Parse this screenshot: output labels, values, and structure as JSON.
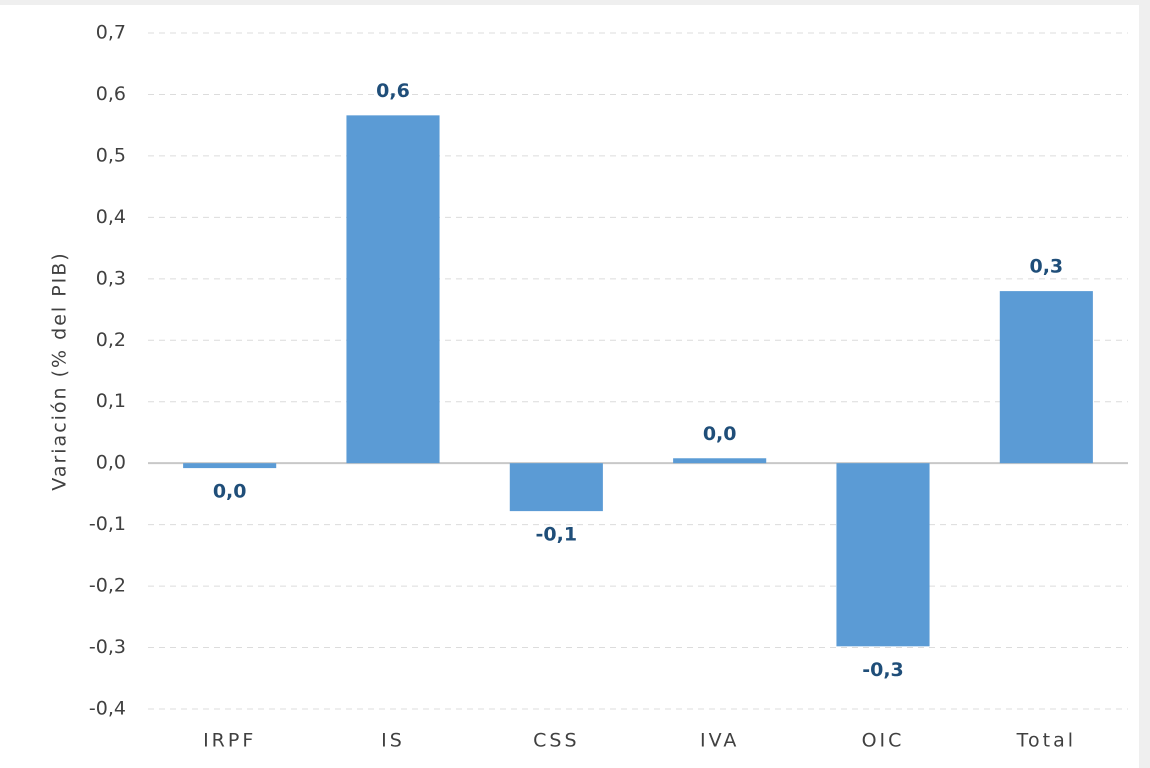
{
  "chart_data": {
    "type": "bar",
    "y_label": "Variación (% del PIB)",
    "categories": [
      "IRPF",
      "IS",
      "CSS",
      "IVA",
      "OIC",
      "Total"
    ],
    "values": [
      -0.008,
      0.566,
      -0.078,
      0.008,
      -0.298,
      0.28
    ],
    "value_labels": [
      "0,0",
      "0,6",
      "-0,1",
      "0,0",
      "-0,3",
      "0,3"
    ],
    "color": "#5b9bd5",
    "ylim": [
      -0.4,
      0.7
    ],
    "yticks": [
      {
        "value": -0.4,
        "label": "-0,4"
      },
      {
        "value": -0.3,
        "label": "-0,3"
      },
      {
        "value": -0.2,
        "label": "-0,2"
      },
      {
        "value": -0.1,
        "label": "-0,1"
      },
      {
        "value": 0,
        "label": "0,0"
      },
      {
        "value": 0.1,
        "label": "0,1"
      },
      {
        "value": 0.2,
        "label": "0,2"
      },
      {
        "value": 0.3,
        "label": "0,3"
      },
      {
        "value": 0.4,
        "label": "0,4"
      },
      {
        "value": 0.5,
        "label": "0,5"
      },
      {
        "value": 0.6,
        "label": "0,6"
      },
      {
        "value": 0.7,
        "label": "0,7"
      }
    ],
    "grid": true
  }
}
